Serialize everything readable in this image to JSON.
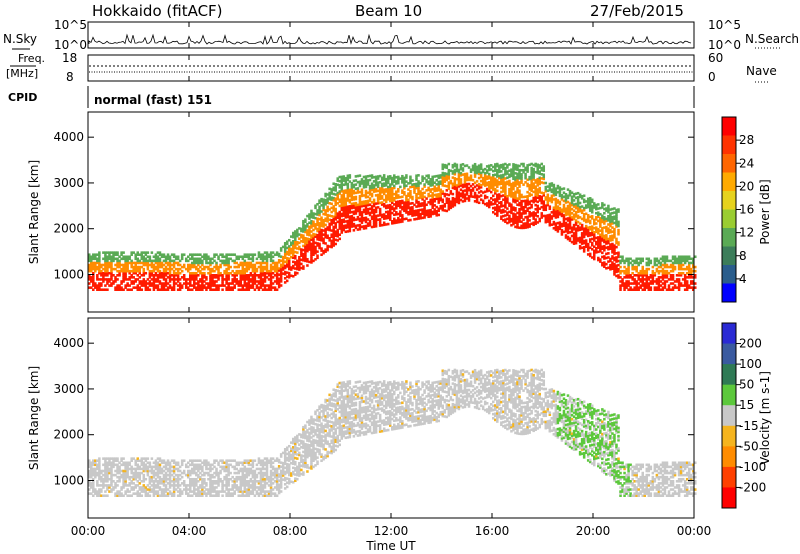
{
  "header": {
    "station": "Hokkaido (fitACF)",
    "beam": "Beam 10",
    "date": "27/Feb/2015"
  },
  "noise_panel": {
    "left_label": "N.Sky",
    "right_label": "N.Search",
    "left_ticks": [
      "10^5",
      "10^0"
    ],
    "right_ticks": [
      "10^5",
      "10^0"
    ]
  },
  "freq_panel": {
    "left_label_1": "Freq.",
    "left_label_2": "[MHz]",
    "left_ticks": [
      "18",
      "8"
    ],
    "right_label": "Nave",
    "right_ticks": [
      "60",
      "0"
    ]
  },
  "cpid": {
    "label": "CPID",
    "value": "normal (fast) 151"
  },
  "chart_data": [
    {
      "type": "heatmap",
      "title": "",
      "ylabel": "Slant Range [km]",
      "xlabel": "",
      "xlim": [
        "00:00",
        "00:00"
      ],
      "ylim": [
        180,
        4550
      ],
      "yticks": [
        1000,
        2000,
        3000,
        4000
      ],
      "xticks": [
        "00:00",
        "04:00",
        "08:00",
        "12:00",
        "16:00",
        "20:00",
        "00:00"
      ],
      "colorbar": {
        "label": "Power [dB]",
        "ticks": [
          "28",
          "24",
          "20",
          "16",
          "12",
          "8",
          "4"
        ],
        "colors": [
          "#ff0000",
          "#ff3300",
          "#ff6600",
          "#ffaa00",
          "#e6d21e",
          "#9acd32",
          "#5aaa55",
          "#3c7d5a",
          "#2a5d8c",
          "#0000ff"
        ]
      }
    },
    {
      "type": "heatmap",
      "title": "",
      "ylabel": "Slant Range [km]",
      "xlabel": "Time UT",
      "xlim": [
        "00:00",
        "00:00"
      ],
      "ylim": [
        180,
        4550
      ],
      "yticks": [
        1000,
        2000,
        3000,
        4000
      ],
      "xticks": [
        "00:00",
        "04:00",
        "08:00",
        "12:00",
        "16:00",
        "20:00",
        "00:00"
      ],
      "colorbar": {
        "label": "Velocity [m s-1]",
        "ticks": [
          "200",
          "100",
          "50",
          "15",
          "-15",
          "-50",
          "-100",
          "-200"
        ],
        "colors": [
          "#2a2ad4",
          "#3a5aa0",
          "#2f7a55",
          "#5cc83c",
          "#c8c8c8",
          "#f5b41e",
          "#ff8c00",
          "#ff4000",
          "#ff0000"
        ]
      }
    }
  ],
  "colors": {
    "power_high": "#ff1a00",
    "power_mid": "#ff8c00",
    "power_low": "#5aaa55",
    "velocity_zero": "#c8c8c8",
    "velocity_positive": "#5cc83c",
    "velocity_negative": "#f5b41e"
  }
}
